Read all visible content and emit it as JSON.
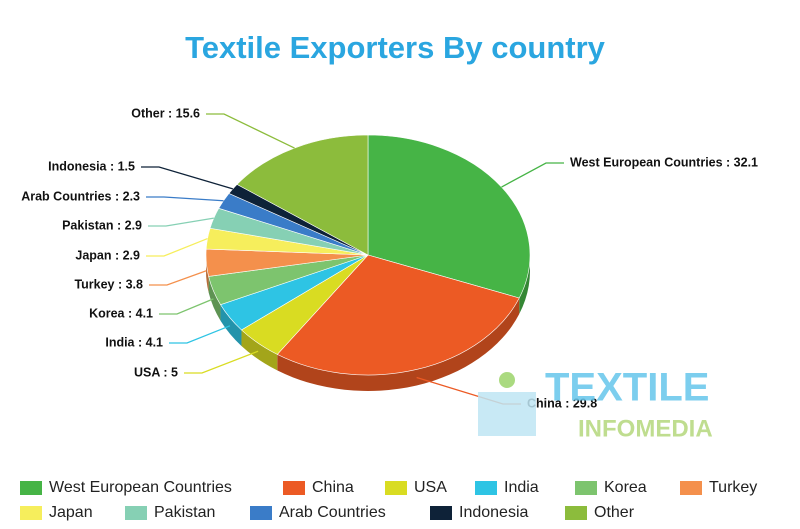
{
  "chart_data": {
    "type": "pie",
    "title": "Textile Exporters By country",
    "categories": [
      "West European Countries",
      "China",
      "USA",
      "India",
      "Korea",
      "Turkey",
      "Japan",
      "Pakistan",
      "Arab Countries",
      "Indonesia",
      "Other"
    ],
    "values": [
      32.1,
      29.8,
      5,
      4.1,
      4.1,
      3.8,
      2.9,
      2.9,
      2.3,
      1.5,
      15.6
    ],
    "value_labels": [
      "West European Countries : 32.1",
      "China : 29.8",
      "USA : 5",
      "India : 4.1",
      "Korea : 4.1",
      "Turkey : 3.8",
      "Japan : 2.9",
      "Pakistan : 2.9",
      "Arab Countries : 2.3",
      "Indonesia : 1.5",
      "Other : 15.6"
    ],
    "colors": [
      "#46b446",
      "#ec5a24",
      "#d9dc22",
      "#2ec4e4",
      "#7dc46e",
      "#f4904c",
      "#f6ee5c",
      "#86d0b4",
      "#3a7cc8",
      "#0e2238",
      "#8cbc3c"
    ],
    "legend": "bottom"
  },
  "watermark": {
    "line1": "TEXTILE",
    "line2": "INFOMEDIA"
  }
}
